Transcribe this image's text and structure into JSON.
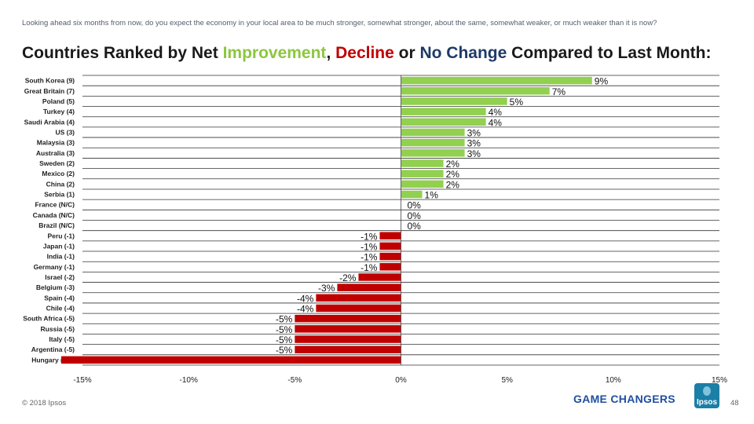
{
  "question": "Looking ahead six months from now, do you expect the economy in your local area to be much stronger, somewhat stronger, about the same, somewhat weaker, or much weaker than it is now?",
  "title": {
    "prefix": "Countries Ranked by Net ",
    "improvement": "Improvement",
    "comma": ", ",
    "decline": "Decline",
    "or": " or ",
    "no_change": "No Change",
    "suffix": " Compared to Last Month:"
  },
  "footer": {
    "copyright": "© 2018 Ipsos",
    "brand": "GAME CHANGERS",
    "logo_text": "Ipsos",
    "page_number": "48"
  },
  "colors": {
    "positive": "#92d050",
    "negative": "#c00000",
    "zero": "#92d050",
    "improvement_text": "#8cc63f",
    "no_change_text": "#1f3a68"
  },
  "chart_data": {
    "type": "bar",
    "orientation": "horizontal",
    "categories": [
      "South Korea (9)",
      "Great Britain (7)",
      "Poland (5)",
      "Turkey (4)",
      "Saudi Arabia (4)",
      "US (3)",
      "Malaysia (3)",
      "Australia (3)",
      "Sweden (2)",
      "Mexico (2)",
      "China (2)",
      "Serbia (1)",
      "France (N/C)",
      "Canada (N/C)",
      "Brazil (N/C)",
      "Peru (-1)",
      "Japan (-1)",
      "India (-1)",
      "Germany (-1)",
      "Israel (-2)",
      "Belgium (-3)",
      "Spain (-4)",
      "Chile (-4)",
      "South Africa (-5)",
      "Russia (-5)",
      "Italy (-5)",
      "Argentina (-5)",
      "Hungary (-16)"
    ],
    "values": [
      9,
      7,
      5,
      4,
      4,
      3,
      3,
      3,
      2,
      2,
      2,
      1,
      0,
      0,
      0,
      -1,
      -1,
      -1,
      -1,
      -2,
      -3,
      -4,
      -4,
      -5,
      -5,
      -5,
      -5,
      -16
    ],
    "data_labels": [
      "9%",
      "7%",
      "5%",
      "4%",
      "4%",
      "3%",
      "3%",
      "3%",
      "2%",
      "2%",
      "2%",
      "1%",
      "0%",
      "0%",
      "0%",
      "-1%",
      "-1%",
      "-1%",
      "-1%",
      "-2%",
      "-3%",
      "-4%",
      "-4%",
      "-5%",
      "-5%",
      "-5%",
      "-5%",
      ""
    ],
    "xlim": [
      -15,
      15
    ],
    "xticks": [
      -15,
      -10,
      -5,
      0,
      5,
      10,
      15
    ],
    "xtick_labels": [
      "-15%",
      "-10%",
      "-5%",
      "0%",
      "5%",
      "10%",
      "15%"
    ],
    "grid": "horizontal",
    "xlabel": "",
    "ylabel": ""
  }
}
